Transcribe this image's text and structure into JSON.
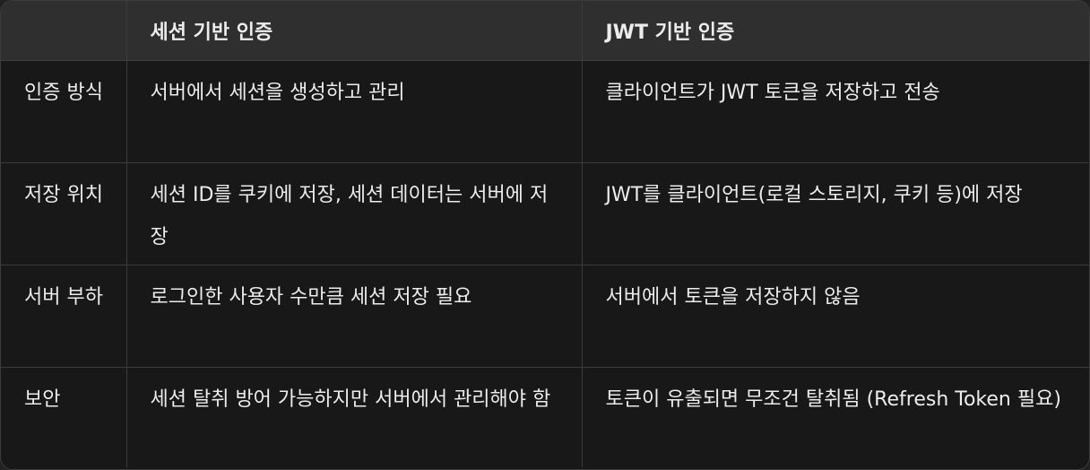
{
  "table": {
    "headers": [
      "",
      "세션 기반 인증",
      "JWT 기반 인증"
    ],
    "rows": [
      [
        "인증 방식",
        "서버에서 세션을 생성하고 관리",
        "클라이언트가 JWT 토큰을 저장하고 전송"
      ],
      [
        "저장 위치",
        "세션 ID를 쿠키에 저장, 세션 데이터는 서버에 저장",
        "JWT를 클라이언트(로컬 스토리지, 쿠키 등)에 저장"
      ],
      [
        "서버 부하",
        "로그인한 사용자 수만큼 세션 저장 필요",
        "서버에서 토큰을 저장하지 않음"
      ],
      [
        "보안",
        "세션 탈취 방어 가능하지만 서버에서 관리해야 함",
        "토큰이 유출되면 무조건 탈취됨 (Refresh Token 필요)"
      ]
    ]
  }
}
